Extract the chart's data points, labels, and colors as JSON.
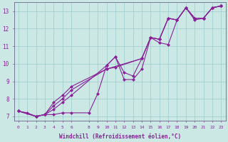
{
  "xlabel": "Windchill (Refroidissement éolien,°C)",
  "bg_color": "#cce8e4",
  "grid_color": "#99cccc",
  "line_color": "#882299",
  "xlim": [
    -0.5,
    23.5
  ],
  "ylim": [
    6.75,
    13.5
  ],
  "xticks": [
    0,
    1,
    2,
    3,
    4,
    5,
    6,
    8,
    9,
    10,
    11,
    12,
    13,
    14,
    15,
    16,
    17,
    18,
    19,
    20,
    21,
    22,
    23
  ],
  "yticks": [
    7,
    8,
    9,
    10,
    11,
    12,
    13
  ],
  "line1_x": [
    0,
    1,
    2,
    3,
    4,
    5,
    6,
    8,
    9,
    10,
    11,
    12,
    13,
    14,
    15,
    16,
    17,
    18,
    19,
    20,
    21,
    22,
    23
  ],
  "line1_y": [
    7.3,
    7.2,
    7.0,
    7.1,
    7.1,
    7.2,
    7.2,
    7.2,
    8.3,
    9.9,
    10.4,
    9.1,
    9.1,
    9.7,
    11.5,
    11.2,
    11.1,
    12.5,
    13.2,
    12.5,
    12.6,
    13.2,
    13.3
  ],
  "line2_x": [
    0,
    2,
    3,
    4,
    5,
    6,
    10,
    11,
    12,
    13,
    14,
    15,
    16,
    17,
    18,
    19,
    20,
    21,
    22,
    23
  ],
  "line2_y": [
    7.3,
    7.0,
    7.1,
    7.4,
    7.8,
    8.2,
    9.9,
    10.4,
    9.5,
    9.3,
    10.3,
    11.5,
    11.4,
    12.6,
    12.5,
    13.2,
    12.6,
    12.6,
    13.2,
    13.3
  ],
  "line3_x": [
    0,
    2,
    3,
    4,
    5,
    6,
    10,
    11,
    14,
    15,
    16,
    17,
    18,
    19,
    20,
    21,
    22,
    23
  ],
  "line3_y": [
    7.3,
    7.0,
    7.1,
    7.6,
    8.0,
    8.5,
    9.7,
    9.8,
    10.3,
    11.5,
    11.4,
    12.6,
    12.5,
    13.2,
    12.6,
    12.6,
    13.2,
    13.3
  ],
  "line4_x": [
    0,
    2,
    3,
    4,
    5,
    6,
    10,
    14,
    15,
    16,
    17,
    18,
    19,
    20,
    21,
    22,
    23
  ],
  "line4_y": [
    7.3,
    7.0,
    7.1,
    7.8,
    8.2,
    8.7,
    9.7,
    10.3,
    11.5,
    11.4,
    12.6,
    12.5,
    13.2,
    12.6,
    12.6,
    13.2,
    13.3
  ]
}
